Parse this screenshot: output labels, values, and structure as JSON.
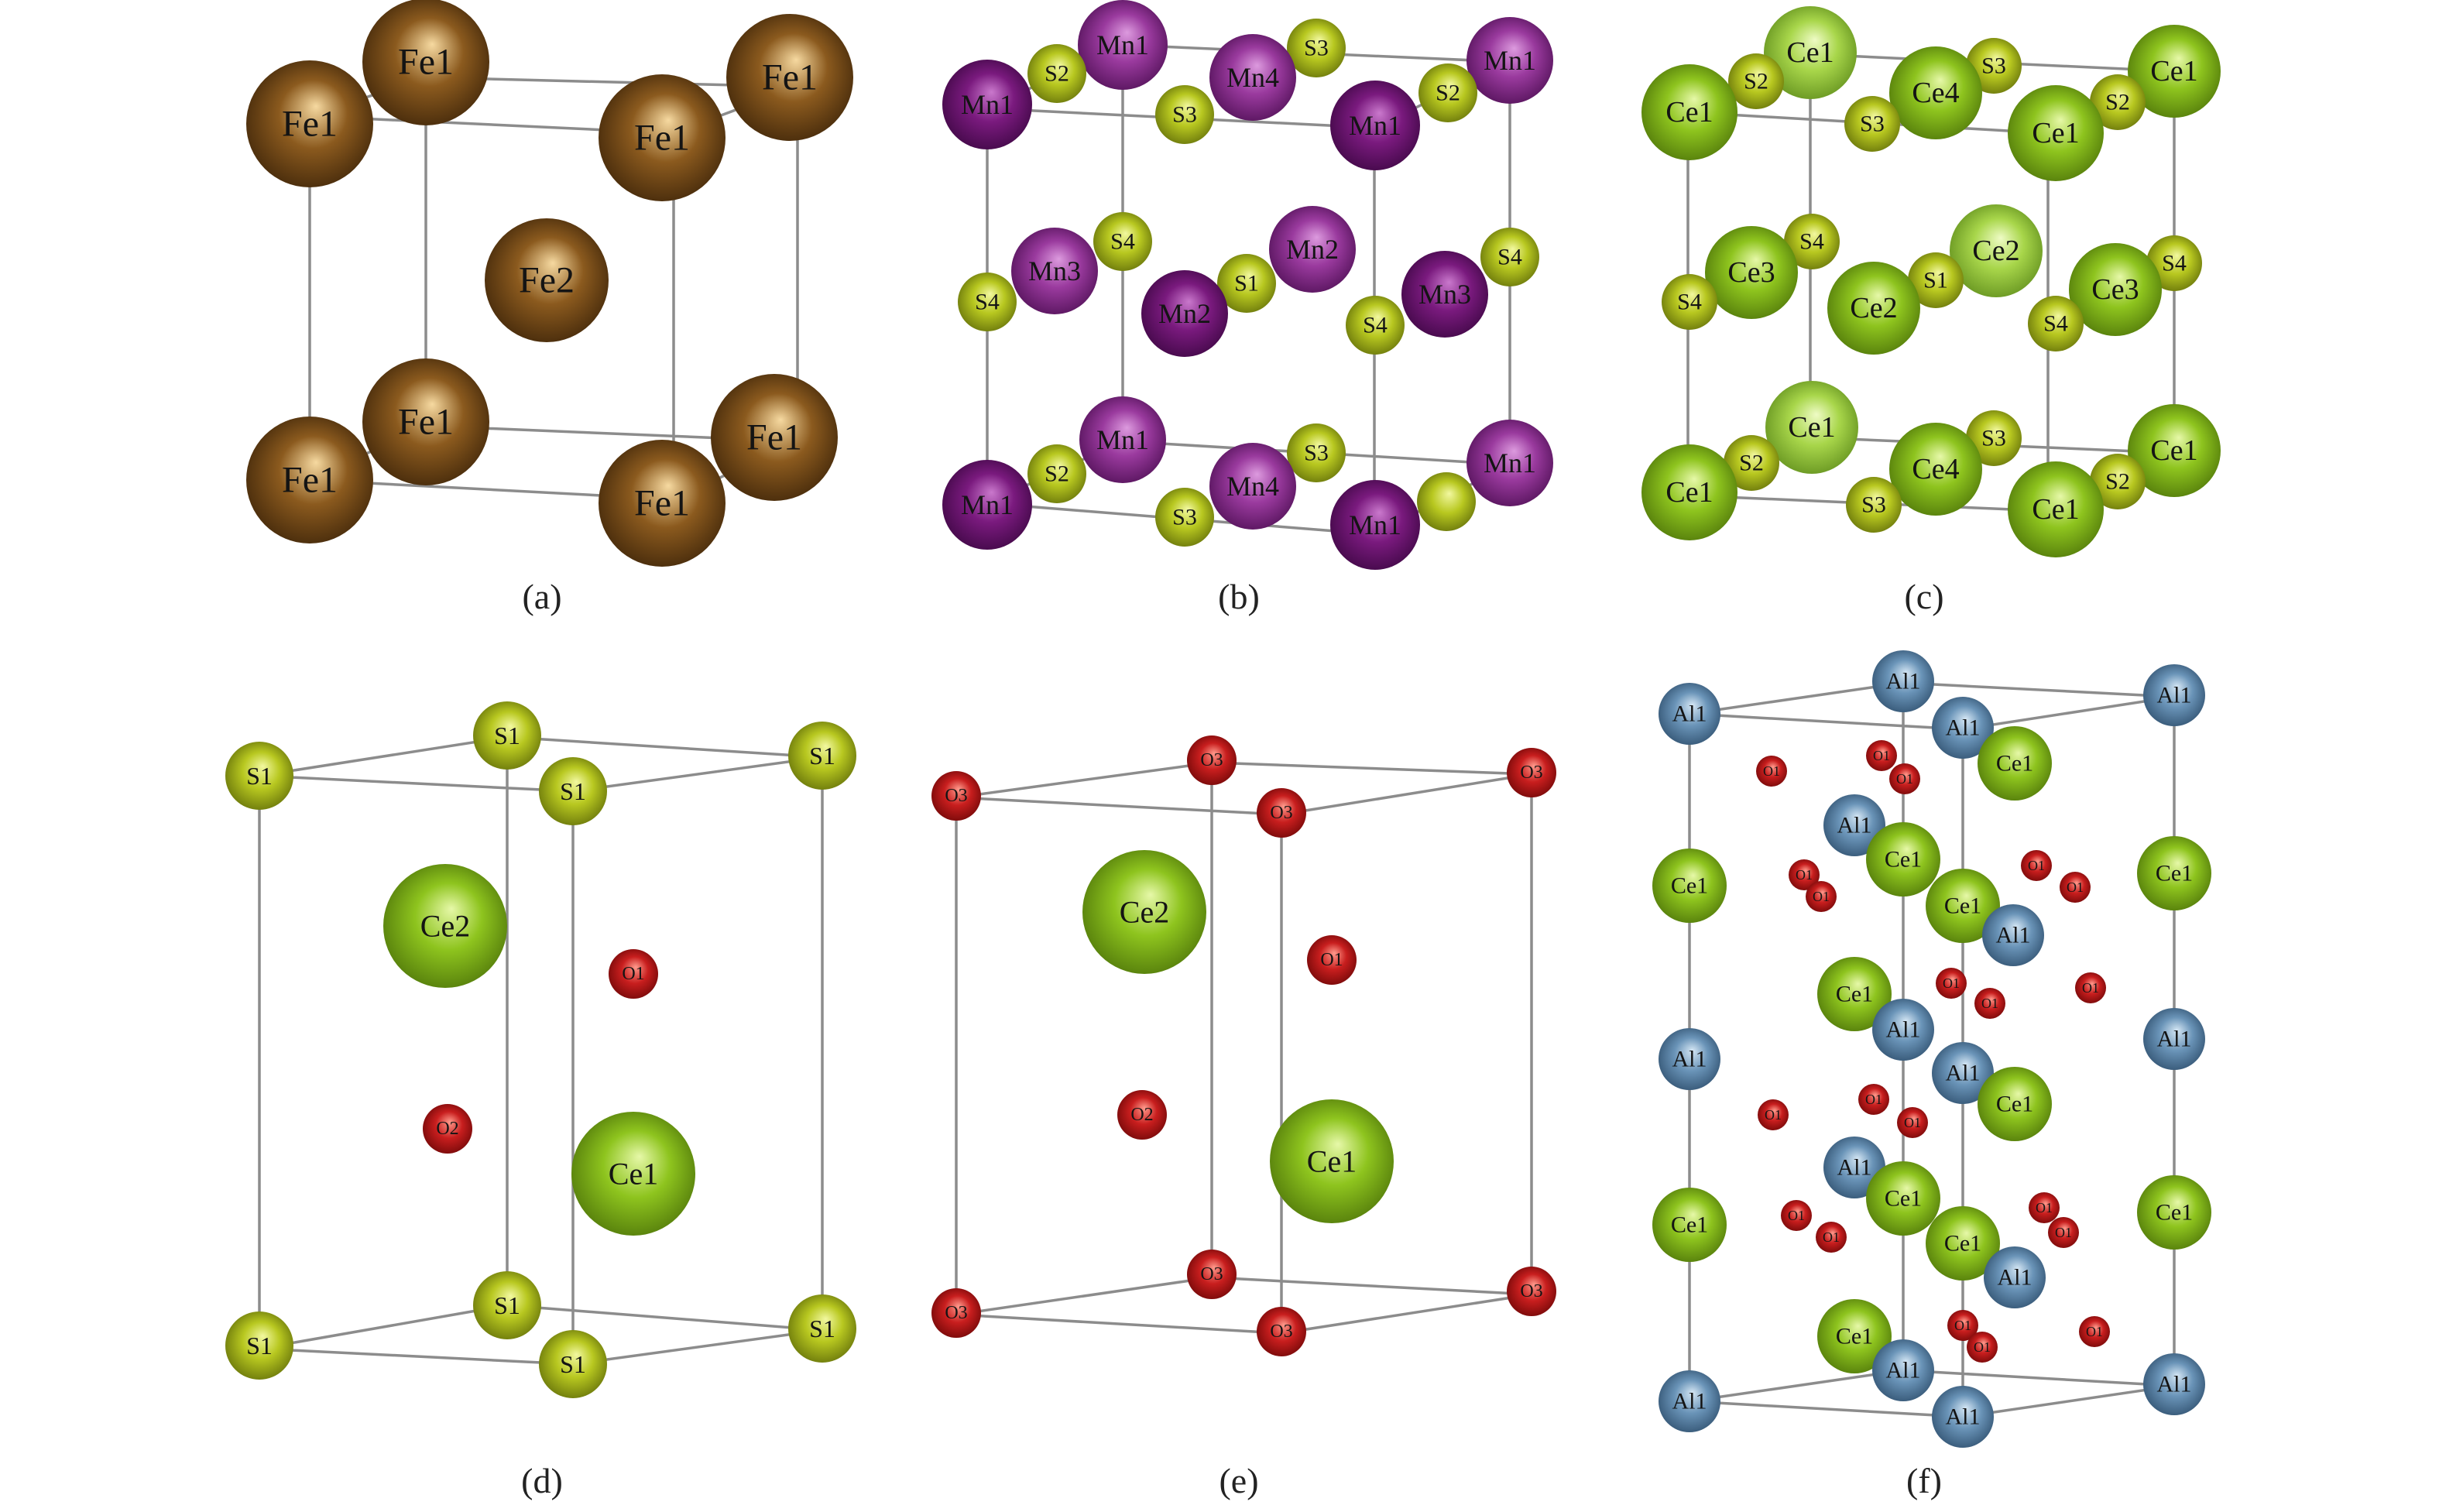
{
  "figure": {
    "description_kind": "crystal-structure-panels",
    "panels": [
      {
        "caption": "(a)",
        "atoms": [
          {
            "label": "Fe1",
            "element": "Fe",
            "depth": "back"
          },
          {
            "label": "Fe1",
            "element": "Fe",
            "depth": "back"
          },
          {
            "label": "Fe1",
            "element": "Fe",
            "depth": "front"
          },
          {
            "label": "Fe1",
            "element": "Fe",
            "depth": "front"
          },
          {
            "label": "Fe2",
            "element": "Fe",
            "depth": "front"
          },
          {
            "label": "Fe1",
            "element": "Fe",
            "depth": "back"
          },
          {
            "label": "Fe1",
            "element": "Fe",
            "depth": "back"
          },
          {
            "label": "Fe1",
            "element": "Fe",
            "depth": "front"
          },
          {
            "label": "Fe1",
            "element": "Fe",
            "depth": "front"
          }
        ]
      },
      {
        "caption": "(b)",
        "atoms": [
          {
            "label": "Mn1",
            "element": "Mn2",
            "depth": "back"
          },
          {
            "label": "S2",
            "element": "S",
            "depth": "front"
          },
          {
            "label": "S3",
            "element": "S",
            "depth": "front"
          },
          {
            "label": "Mn1",
            "element": "Mn2",
            "depth": "back"
          },
          {
            "label": "S2",
            "element": "S",
            "depth": "front"
          },
          {
            "label": "Mn4",
            "element": "Mn2",
            "depth": "front"
          },
          {
            "label": "S3",
            "element": "S",
            "depth": "front"
          },
          {
            "label": "Mn1",
            "element": "Mn",
            "depth": "front"
          },
          {
            "label": "Mn1",
            "element": "Mn",
            "depth": "front"
          },
          {
            "label": "S4",
            "element": "S",
            "depth": "front"
          },
          {
            "label": "Mn2",
            "element": "Mn2",
            "depth": "front"
          },
          {
            "label": "Mn3",
            "element": "Mn2",
            "depth": "front"
          },
          {
            "label": "S1",
            "element": "S",
            "depth": "front"
          },
          {
            "label": "Mn2",
            "element": "Mn",
            "depth": "front"
          },
          {
            "label": "S4",
            "element": "S",
            "depth": "front"
          },
          {
            "label": "Mn3",
            "element": "Mn",
            "depth": "front"
          },
          {
            "label": "S4",
            "element": "S",
            "depth": "front"
          },
          {
            "label": "S4",
            "element": "S",
            "depth": "front"
          },
          {
            "label": "Mn1",
            "element": "Mn2",
            "depth": "back"
          },
          {
            "label": "S3",
            "element": "S",
            "depth": "front"
          },
          {
            "label": "Mn1",
            "element": "Mn2",
            "depth": "back"
          },
          {
            "label": "S2",
            "element": "S",
            "depth": "front"
          },
          {
            "label": "Mn4",
            "element": "Mn2",
            "depth": "front"
          },
          {
            "label": "S3",
            "element": "S",
            "depth": "front"
          },
          {
            "label": "",
            "element": "S",
            "depth": "front"
          },
          {
            "label": "Mn1",
            "element": "Mn",
            "depth": "front"
          },
          {
            "label": "Mn1",
            "element": "Mn",
            "depth": "front"
          }
        ]
      },
      {
        "caption": "(c)",
        "atoms": [
          {
            "label": "Ce1",
            "element": "Ce2",
            "depth": "back"
          },
          {
            "label": "S3",
            "element": "S",
            "depth": "front"
          },
          {
            "label": "S2",
            "element": "S",
            "depth": "front"
          },
          {
            "label": "Ce1",
            "element": "Ce",
            "depth": "back"
          },
          {
            "label": "S2",
            "element": "S",
            "depth": "front"
          },
          {
            "label": "Ce4",
            "element": "Ce",
            "depth": "front"
          },
          {
            "label": "S3",
            "element": "S",
            "depth": "front"
          },
          {
            "label": "Ce1",
            "element": "Ce",
            "depth": "front"
          },
          {
            "label": "Ce1",
            "element": "Ce",
            "depth": "front"
          },
          {
            "label": "S4",
            "element": "S",
            "depth": "front"
          },
          {
            "label": "Ce2",
            "element": "Ce2",
            "depth": "front"
          },
          {
            "label": "Ce3",
            "element": "Ce",
            "depth": "front"
          },
          {
            "label": "S1",
            "element": "S",
            "depth": "front"
          },
          {
            "label": "Ce2",
            "element": "Ce",
            "depth": "front"
          },
          {
            "label": "S4",
            "element": "S",
            "depth": "front"
          },
          {
            "label": "Ce3",
            "element": "Ce",
            "depth": "front"
          },
          {
            "label": "S4",
            "element": "S",
            "depth": "front"
          },
          {
            "label": "S4",
            "element": "S",
            "depth": "front"
          },
          {
            "label": "Ce1",
            "element": "Ce2",
            "depth": "back"
          },
          {
            "label": "S3",
            "element": "S",
            "depth": "front"
          },
          {
            "label": "Ce1",
            "element": "Ce",
            "depth": "back"
          },
          {
            "label": "S2",
            "element": "S",
            "depth": "front"
          },
          {
            "label": "Ce4",
            "element": "Ce",
            "depth": "front"
          },
          {
            "label": "S3",
            "element": "S",
            "depth": "front"
          },
          {
            "label": "S2",
            "element": "S",
            "depth": "front"
          },
          {
            "label": "Ce1",
            "element": "Ce",
            "depth": "front"
          },
          {
            "label": "Ce1",
            "element": "Ce",
            "depth": "front"
          }
        ]
      },
      {
        "caption": "(d)",
        "atoms": [
          {
            "label": "S1",
            "element": "S",
            "depth": "back"
          },
          {
            "label": "S1",
            "element": "S",
            "depth": "back"
          },
          {
            "label": "S1",
            "element": "S",
            "depth": "front"
          },
          {
            "label": "S1",
            "element": "S",
            "depth": "front"
          },
          {
            "label": "Ce2",
            "element": "Ce",
            "depth": "front"
          },
          {
            "label": "O1",
            "element": "O",
            "depth": "front"
          },
          {
            "label": "O2",
            "element": "O",
            "depth": "front"
          },
          {
            "label": "Ce1",
            "element": "Ce",
            "depth": "front"
          },
          {
            "label": "S1",
            "element": "S",
            "depth": "back"
          },
          {
            "label": "S1",
            "element": "S",
            "depth": "back"
          },
          {
            "label": "S1",
            "element": "S",
            "depth": "front"
          },
          {
            "label": "S1",
            "element": "S",
            "depth": "front"
          }
        ]
      },
      {
        "caption": "(e)",
        "atoms": [
          {
            "label": "O3",
            "element": "O",
            "depth": "back"
          },
          {
            "label": "O3",
            "element": "O",
            "depth": "back"
          },
          {
            "label": "O3",
            "element": "O",
            "depth": "front"
          },
          {
            "label": "O3",
            "element": "O",
            "depth": "front"
          },
          {
            "label": "Ce2",
            "element": "Ce",
            "depth": "front"
          },
          {
            "label": "O1",
            "element": "O",
            "depth": "front"
          },
          {
            "label": "O2",
            "element": "O",
            "depth": "front"
          },
          {
            "label": "Ce1",
            "element": "Ce",
            "depth": "front"
          },
          {
            "label": "O3",
            "element": "O",
            "depth": "back"
          },
          {
            "label": "O3",
            "element": "O",
            "depth": "back"
          },
          {
            "label": "O3",
            "element": "O",
            "depth": "front"
          },
          {
            "label": "O3",
            "element": "O",
            "depth": "front"
          }
        ]
      },
      {
        "caption": "(f)",
        "atoms": [
          {
            "label": "Al1",
            "element": "Al",
            "depth": "back"
          },
          {
            "label": "Al1",
            "element": "Al",
            "depth": "back"
          },
          {
            "label": "Al1",
            "element": "Al",
            "depth": "front"
          },
          {
            "label": "Al1",
            "element": "Al",
            "depth": "front"
          },
          {
            "label": "O1",
            "element": "O",
            "depth": "front"
          },
          {
            "label": "O1",
            "element": "O",
            "depth": "front"
          },
          {
            "label": "O1",
            "element": "O",
            "depth": "front"
          },
          {
            "label": "Ce1",
            "element": "Ce",
            "depth": "front"
          },
          {
            "label": "Al1",
            "element": "Al",
            "depth": "front"
          },
          {
            "label": "Ce1",
            "element": "Ce",
            "depth": "front"
          },
          {
            "label": "Ce1",
            "element": "Ce",
            "depth": "front"
          },
          {
            "label": "Ce1",
            "element": "Ce",
            "depth": "front"
          },
          {
            "label": "Ce1",
            "element": "Ce",
            "depth": "front"
          },
          {
            "label": "O1",
            "element": "O",
            "depth": "front"
          },
          {
            "label": "O1",
            "element": "O",
            "depth": "front"
          },
          {
            "label": "O1",
            "element": "O",
            "depth": "front"
          },
          {
            "label": "O1",
            "element": "O",
            "depth": "front"
          },
          {
            "label": "Al1",
            "element": "Al",
            "depth": "front"
          },
          {
            "label": "Ce1",
            "element": "Ce",
            "depth": "front"
          },
          {
            "label": "O1",
            "element": "O",
            "depth": "front"
          },
          {
            "label": "O1",
            "element": "O",
            "depth": "front"
          },
          {
            "label": "O1",
            "element": "O",
            "depth": "front"
          },
          {
            "label": "Al1",
            "element": "Al",
            "depth": "front"
          },
          {
            "label": "Al1",
            "element": "Al",
            "depth": "front"
          },
          {
            "label": "Al1",
            "element": "Al",
            "depth": "front"
          },
          {
            "label": "Al1",
            "element": "Al",
            "depth": "front"
          },
          {
            "label": "O1",
            "element": "O",
            "depth": "front"
          },
          {
            "label": "O1",
            "element": "O",
            "depth": "front"
          },
          {
            "label": "O1",
            "element": "O",
            "depth": "front"
          },
          {
            "label": "Ce1",
            "element": "Ce",
            "depth": "front"
          },
          {
            "label": "Al1",
            "element": "Al",
            "depth": "front"
          },
          {
            "label": "Ce1",
            "element": "Ce",
            "depth": "front"
          },
          {
            "label": "Ce1",
            "element": "Ce",
            "depth": "front"
          },
          {
            "label": "Ce1",
            "element": "Ce",
            "depth": "front"
          },
          {
            "label": "Ce1",
            "element": "Ce",
            "depth": "front"
          },
          {
            "label": "O1",
            "element": "O",
            "depth": "front"
          },
          {
            "label": "O1",
            "element": "O",
            "depth": "front"
          },
          {
            "label": "O1",
            "element": "O",
            "depth": "front"
          },
          {
            "label": "O1",
            "element": "O",
            "depth": "front"
          },
          {
            "label": "Al1",
            "element": "Al",
            "depth": "front"
          },
          {
            "label": "Ce1",
            "element": "Ce",
            "depth": "front"
          },
          {
            "label": "O1",
            "element": "O",
            "depth": "front"
          },
          {
            "label": "O1",
            "element": "O",
            "depth": "front"
          },
          {
            "label": "O1",
            "element": "O",
            "depth": "front"
          },
          {
            "label": "Al1",
            "element": "Al",
            "depth": "back"
          },
          {
            "label": "Al1",
            "element": "Al",
            "depth": "back"
          },
          {
            "label": "Al1",
            "element": "Al",
            "depth": "front"
          },
          {
            "label": "Al1",
            "element": "Al",
            "depth": "front"
          }
        ]
      }
    ]
  },
  "element_colors": {
    "Fe": {
      "base": "#8b5a1e",
      "hi": "#f6d9a0",
      "lo": "#3a2208"
    },
    "Mn": {
      "base": "#7a1a7e",
      "hi": "#c978cc",
      "lo": "#3a0640"
    },
    "Mn2": {
      "base": "#9a3a9e",
      "hi": "#dc9ade",
      "lo": "#4c0e52"
    },
    "S": {
      "base": "#b8c820",
      "hi": "#f2f8a0",
      "lo": "#5e6a08"
    },
    "Ce": {
      "base": "#8ec41e",
      "hi": "#e6f8a8",
      "lo": "#4a7008"
    },
    "Ce2": {
      "base": "#a8d64a",
      "hi": "#eefbc4",
      "lo": "#5c8a1a"
    },
    "O": {
      "base": "#c81e1e",
      "hi": "#ff9a8c",
      "lo": "#6a0606"
    },
    "Al": {
      "base": "#6a94b8",
      "hi": "#d4e6f4",
      "lo": "#2c4c6a"
    }
  }
}
